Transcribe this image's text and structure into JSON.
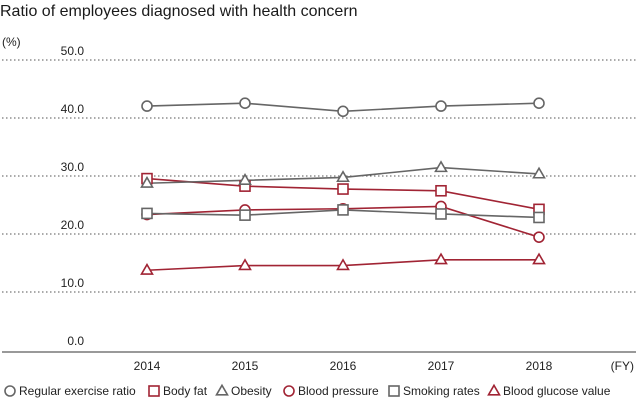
{
  "chart_data": {
    "type": "line",
    "title": "Ratio of employees diagnosed with health concern",
    "ylabel": "(%)",
    "xlabel": "(FY)",
    "ylim": [
      0,
      50
    ],
    "yticks": [
      "0.0",
      "10.0",
      "20.0",
      "30.0",
      "40.0",
      "50.0"
    ],
    "categories": [
      "2014",
      "2015",
      "2016",
      "2017",
      "2018"
    ],
    "grid": true,
    "legend": "bottom",
    "series": [
      {
        "name": "Regular exercise ratio",
        "marker": "circle",
        "color": "#666666",
        "values": [
          40.5,
          41.0,
          39.6,
          40.5,
          41.0
        ]
      },
      {
        "name": "Body fat",
        "marker": "square",
        "color": "#a12434",
        "values": [
          28.0,
          26.7,
          26.2,
          25.9,
          22.7
        ]
      },
      {
        "name": "Obesity",
        "marker": "triangle",
        "color": "#666666",
        "values": [
          27.2,
          27.7,
          28.2,
          29.9,
          28.8
        ]
      },
      {
        "name": "Blood pressure",
        "marker": "circle",
        "color": "#a12434",
        "values": [
          21.8,
          22.6,
          22.8,
          23.2,
          17.9
        ]
      },
      {
        "name": "Smoking rates",
        "marker": "square",
        "color": "#666666",
        "values": [
          22.0,
          21.7,
          22.6,
          21.9,
          21.3
        ]
      },
      {
        "name": "Blood glucose value",
        "marker": "triangle",
        "color": "#a12434",
        "values": [
          12.2,
          13.0,
          13.0,
          14.0,
          14.0
        ]
      }
    ]
  }
}
